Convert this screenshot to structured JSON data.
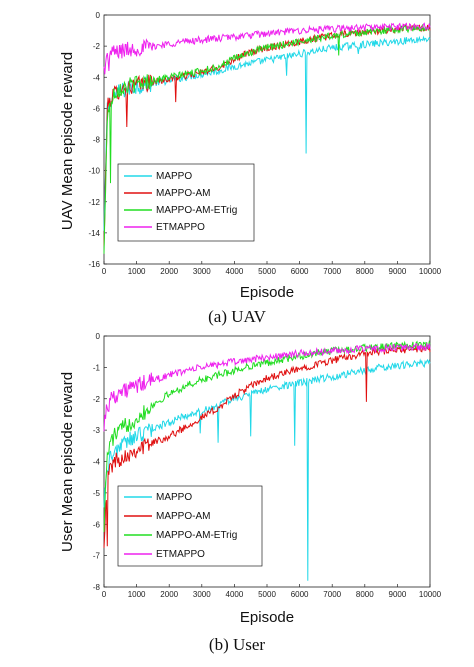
{
  "chart_data": [
    {
      "id": "uav",
      "type": "line",
      "caption": "(a) UAV",
      "xlabel": "Episode",
      "ylabel": "UAV Mean episode reward",
      "xlim": [
        0,
        10000
      ],
      "ylim": [
        -16,
        0
      ],
      "xticks": [
        0,
        1000,
        2000,
        3000,
        4000,
        5000,
        6000,
        7000,
        8000,
        9000,
        10000
      ],
      "yticks": [
        0,
        -2,
        -4,
        -6,
        -8,
        -10,
        -12,
        -14,
        -16
      ],
      "legend_position": "bottom-left",
      "grid": false,
      "series": [
        {
          "name": "MAPPO",
          "color": "#22d8e8",
          "x": [
            0,
            100,
            200,
            300,
            500,
            1000,
            1500,
            2000,
            2500,
            3000,
            3500,
            4000,
            4500,
            5000,
            5500,
            6000,
            6500,
            7000,
            7500,
            8000,
            8500,
            9000,
            9500,
            10000
          ],
          "y": [
            -14,
            -6,
            -5.5,
            -5.2,
            -4.9,
            -4.6,
            -4.4,
            -4.2,
            -4.0,
            -3.8,
            -3.6,
            -3.3,
            -3.1,
            -2.9,
            -2.7,
            -2.5,
            -2.3,
            -2.1,
            -2.0,
            -1.9,
            -1.8,
            -1.7,
            -1.6,
            -1.5
          ],
          "spikes": [
            [
              6200,
              -8.9
            ],
            [
              5600,
              -3.9
            ],
            [
              7800,
              -2.5
            ]
          ]
        },
        {
          "name": "MAPPO-AM",
          "color": "#e01010",
          "x": [
            0,
            100,
            200,
            300,
            500,
            1000,
            1500,
            2000,
            2500,
            3000,
            3500,
            4000,
            4500,
            5000,
            5500,
            6000,
            6500,
            7000,
            7500,
            8000,
            8500,
            9000,
            9500,
            10000
          ],
          "y": [
            -15,
            -6,
            -5.4,
            -5.1,
            -4.8,
            -4.5,
            -4.3,
            -4.1,
            -3.9,
            -3.7,
            -3.4,
            -2.8,
            -2.4,
            -2.1,
            -1.9,
            -1.7,
            -1.5,
            -1.35,
            -1.2,
            -1.1,
            -1.0,
            -0.9,
            -0.85,
            -0.8
          ],
          "spikes": [
            [
              700,
              -7.2
            ],
            [
              2200,
              -5.6
            ]
          ]
        },
        {
          "name": "MAPPO-AM-ETrig",
          "color": "#22dd22",
          "x": [
            0,
            100,
            200,
            300,
            500,
            1000,
            1500,
            2000,
            2500,
            3000,
            3500,
            4000,
            4500,
            5000,
            5500,
            6000,
            6500,
            7000,
            7500,
            8000,
            8500,
            9000,
            9500,
            10000
          ],
          "y": [
            -15.5,
            -6.5,
            -5.5,
            -5.0,
            -4.7,
            -4.4,
            -4.2,
            -4.0,
            -3.8,
            -3.6,
            -3.3,
            -2.8,
            -2.4,
            -2.1,
            -1.9,
            -1.7,
            -1.5,
            -1.35,
            -1.2,
            -1.1,
            -1.0,
            -0.9,
            -0.85,
            -0.8
          ],
          "spikes": [
            [
              200,
              -10.8
            ],
            [
              7200,
              -2.6
            ]
          ]
        },
        {
          "name": "ETMAPPO",
          "color": "#ee22ee",
          "x": [
            0,
            100,
            200,
            300,
            500,
            1000,
            1500,
            2000,
            2500,
            3000,
            3500,
            4000,
            4500,
            5000,
            5500,
            6000,
            6500,
            7000,
            7500,
            8000,
            8500,
            9000,
            9500,
            10000
          ],
          "y": [
            -3.5,
            -2.8,
            -2.5,
            -2.4,
            -2.3,
            -2.15,
            -2.0,
            -1.85,
            -1.7,
            -1.6,
            -1.5,
            -1.4,
            -1.3,
            -1.2,
            -1.1,
            -1.0,
            -0.95,
            -0.9,
            -0.85,
            -0.8,
            -0.78,
            -0.75,
            -0.72,
            -0.7
          ],
          "spikes": [
            [
              150,
              -3.6
            ]
          ]
        }
      ]
    },
    {
      "id": "user",
      "type": "line",
      "caption": "(b) User",
      "xlabel": "Episode",
      "ylabel": "User Mean episode reward",
      "xlim": [
        0,
        10000
      ],
      "ylim": [
        -8,
        0
      ],
      "xticks": [
        0,
        1000,
        2000,
        3000,
        4000,
        5000,
        6000,
        7000,
        8000,
        9000,
        10000
      ],
      "yticks": [
        0,
        -1,
        -2,
        -3,
        -4,
        -5,
        -6,
        -7,
        -8
      ],
      "legend_position": "bottom-left",
      "grid": false,
      "series": [
        {
          "name": "MAPPO",
          "color": "#22d8e8",
          "x": [
            0,
            100,
            200,
            300,
            500,
            1000,
            1500,
            2000,
            2500,
            3000,
            3500,
            4000,
            4500,
            5000,
            5500,
            6000,
            6500,
            7000,
            7500,
            8000,
            8500,
            9000,
            9500,
            10000
          ],
          "y": [
            -5.2,
            -4.2,
            -3.9,
            -3.7,
            -3.5,
            -3.2,
            -2.95,
            -2.75,
            -2.55,
            -2.4,
            -2.2,
            -2.0,
            -1.85,
            -1.7,
            -1.6,
            -1.5,
            -1.4,
            -1.3,
            -1.2,
            -1.1,
            -1.0,
            -0.95,
            -0.9,
            -0.85
          ],
          "spikes": [
            [
              6250,
              -7.8
            ],
            [
              5850,
              -3.5
            ],
            [
              2950,
              -3.1
            ],
            [
              3500,
              -3.4
            ],
            [
              4500,
              -3.2
            ]
          ]
        },
        {
          "name": "MAPPO-AM",
          "color": "#e01010",
          "x": [
            0,
            100,
            200,
            300,
            500,
            1000,
            1500,
            2000,
            2500,
            3000,
            3500,
            4000,
            4500,
            5000,
            5500,
            6000,
            6500,
            7000,
            7500,
            8000,
            8500,
            9000,
            9500,
            10000
          ],
          "y": [
            -6.5,
            -4.5,
            -4.2,
            -4.0,
            -3.9,
            -3.6,
            -3.4,
            -3.2,
            -2.9,
            -2.6,
            -2.3,
            -1.9,
            -1.6,
            -1.35,
            -1.2,
            -1.05,
            -0.9,
            -0.78,
            -0.66,
            -0.56,
            -0.5,
            -0.45,
            -0.42,
            -0.4
          ],
          "spikes": [
            [
              8050,
              -2.1
            ],
            [
              100,
              -6.7
            ]
          ]
        },
        {
          "name": "MAPPO-AM-ETrig",
          "color": "#22dd22",
          "x": [
            0,
            100,
            200,
            300,
            500,
            1000,
            1500,
            2000,
            2500,
            3000,
            3500,
            4000,
            4500,
            5000,
            5500,
            6000,
            6500,
            7000,
            7500,
            8000,
            8500,
            9000,
            9500,
            10000
          ],
          "y": [
            -6.0,
            -3.8,
            -3.4,
            -3.2,
            -3.0,
            -2.6,
            -2.2,
            -1.85,
            -1.6,
            -1.4,
            -1.25,
            -1.1,
            -0.95,
            -0.85,
            -0.75,
            -0.65,
            -0.55,
            -0.47,
            -0.42,
            -0.38,
            -0.35,
            -0.32,
            -0.3,
            -0.28
          ],
          "spikes": []
        },
        {
          "name": "ETMAPPO",
          "color": "#ee22ee",
          "x": [
            0,
            100,
            200,
            300,
            500,
            1000,
            1500,
            2000,
            2500,
            3000,
            3500,
            4000,
            4500,
            5000,
            5500,
            6000,
            6500,
            7000,
            7500,
            8000,
            8500,
            9000,
            9500,
            10000
          ],
          "y": [
            -2.8,
            -2.2,
            -2.0,
            -1.9,
            -1.8,
            -1.6,
            -1.4,
            -1.25,
            -1.1,
            -1.0,
            -0.9,
            -0.82,
            -0.75,
            -0.68,
            -0.62,
            -0.56,
            -0.52,
            -0.48,
            -0.44,
            -0.42,
            -0.4,
            -0.38,
            -0.36,
            -0.35
          ],
          "spikes": [
            [
              150,
              -2.4
            ]
          ]
        }
      ]
    }
  ]
}
